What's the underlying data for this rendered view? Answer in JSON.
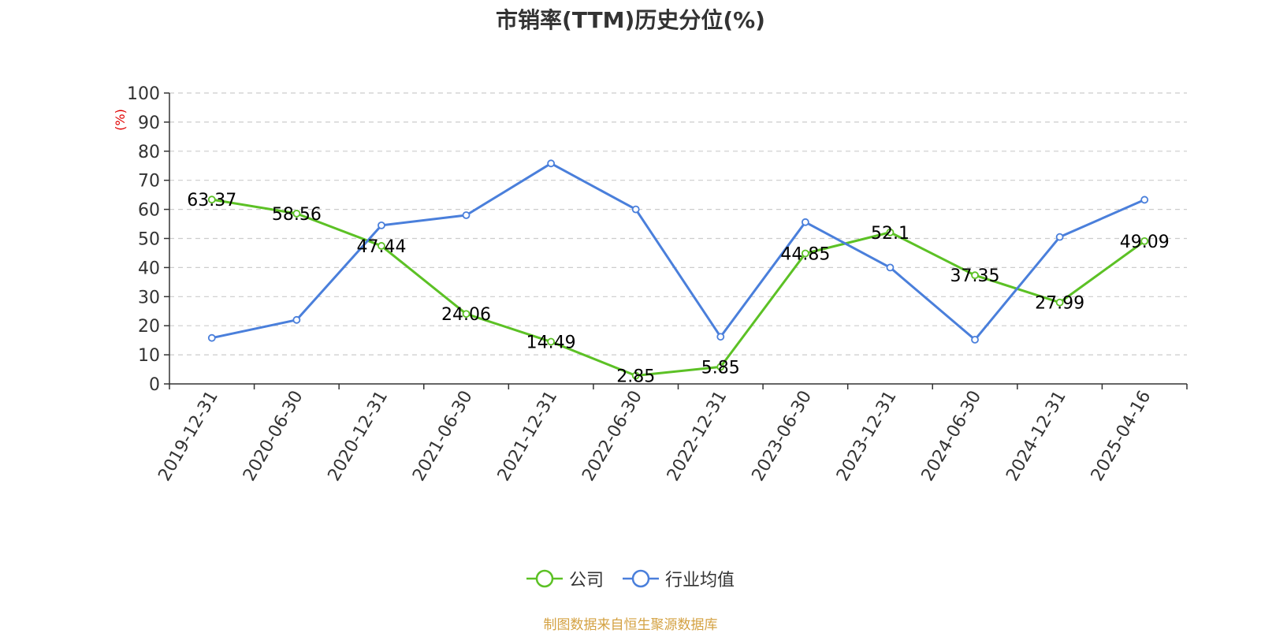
{
  "title": "市销率(TTM)历史分位(%)",
  "source_note": "制图数据来自恒生聚源数据库",
  "colors": {
    "company": "#5cc125",
    "industry": "#4a7fdb",
    "ylabel": "#e00000",
    "source": "#d4a243"
  },
  "chart_data": {
    "type": "line",
    "title": "市销率(TTM)历史分位(%)",
    "ylabel": "(%)",
    "xlabel": "",
    "ylim": [
      0,
      100
    ],
    "yticks": [
      0,
      10,
      20,
      30,
      40,
      50,
      60,
      70,
      80,
      90,
      100
    ],
    "grid": true,
    "legend_position": "bottom-center",
    "categories": [
      "2019-12-31",
      "2020-06-30",
      "2020-12-31",
      "2021-06-30",
      "2021-12-31",
      "2022-06-30",
      "2022-12-31",
      "2023-06-30",
      "2023-12-31",
      "2024-06-30",
      "2024-12-31",
      "2025-04-16"
    ],
    "series": [
      {
        "name": "公司",
        "color": "#5cc125",
        "show_labels": true,
        "values": [
          63.37,
          58.56,
          47.44,
          24.06,
          14.49,
          2.85,
          5.85,
          44.85,
          52.1,
          37.35,
          27.99,
          49.09
        ],
        "labels": [
          "63.37",
          "58.56",
          "47.44",
          "24.06",
          "14.49",
          "2.85",
          "5.85",
          "44.85",
          "52.1",
          "37.35",
          "27.99",
          "49.09"
        ]
      },
      {
        "name": "行业均值",
        "color": "#4a7fdb",
        "show_labels": false,
        "values": [
          15.8,
          22.0,
          54.5,
          58.0,
          75.8,
          60.0,
          16.2,
          55.6,
          40.0,
          15.2,
          50.5,
          63.3
        ]
      }
    ]
  }
}
